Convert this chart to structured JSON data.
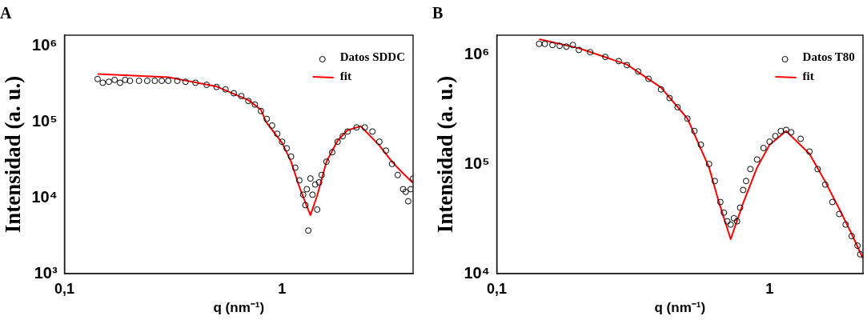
{
  "chart_data": [
    {
      "type": "scatter",
      "title": "A",
      "xlabel": "q (nm⁻¹)",
      "ylabel": "Intensidad (a. u.)",
      "log": "xy",
      "legend": "top right",
      "xlim": [
        0.1,
        4
      ],
      "ylim": [
        1000,
        1400000
      ],
      "xticks": [
        {
          "value": 0.1,
          "label": "0,1"
        },
        1
      ],
      "yticks": [
        {
          "value": 1000,
          "label": "10³"
        },
        {
          "value": 10000,
          "label": "10⁴"
        },
        {
          "value": 100000,
          "label": "10⁵"
        },
        {
          "value": 1000000,
          "label": "10⁶"
        }
      ],
      "series": [
        {
          "name": "Datos SDDC",
          "color": "#000000",
          "marker": "circle",
          "x": [
            0.142,
            0.15,
            0.16,
            0.17,
            0.18,
            0.19,
            0.2,
            0.22,
            0.24,
            0.26,
            0.28,
            0.3,
            0.33,
            0.36,
            0.4,
            0.45,
            0.5,
            0.55,
            0.6,
            0.65,
            0.7,
            0.75,
            0.8,
            0.85,
            0.9,
            0.95,
            1.0,
            1.05,
            1.1,
            1.15,
            1.2,
            1.25,
            1.28,
            1.3,
            1.32,
            1.35,
            1.38,
            1.42,
            1.45,
            1.48,
            1.52,
            1.6,
            1.7,
            1.8,
            1.9,
            2.0,
            2.2,
            2.4,
            2.6,
            2.8,
            3.0,
            3.2,
            3.4,
            3.6,
            3.7,
            3.8,
            3.9,
            4.0
          ],
          "values": [
            370000,
            330000,
            340000,
            360000,
            330000,
            360000,
            350000,
            350000,
            350000,
            350000,
            350000,
            350000,
            350000,
            340000,
            330000,
            310000,
            290000,
            270000,
            240000,
            220000,
            190000,
            170000,
            140000,
            110000,
            90000,
            70000,
            55000,
            45000,
            35000,
            25000,
            17000,
            11000,
            8000,
            13000,
            3700,
            18000,
            11000,
            15000,
            7000,
            16000,
            20000,
            30000,
            40000,
            55000,
            65000,
            75000,
            85000,
            85000,
            75000,
            55000,
            42000,
            28000,
            20000,
            13000,
            12000,
            9000,
            13000,
            18000
          ]
        },
        {
          "name": "fit",
          "type": "line",
          "color": "#ff0000",
          "marker": "none",
          "x": [
            0.142,
            0.3,
            0.5,
            0.7,
            0.8,
            0.845,
            1.0,
            1.1,
            1.2,
            1.3,
            1.35,
            1.45,
            1.6,
            1.8,
            2.0,
            2.3,
            2.8,
            3.2,
            3.6,
            4.0
          ],
          "values": [
            430000,
            390000,
            295000,
            195000,
            145000,
            100000,
            53000,
            30000,
            14000,
            7700,
            5900,
            10700,
            30000,
            57000,
            78000,
            88000,
            49000,
            30000,
            21000,
            15700
          ]
        }
      ]
    },
    {
      "type": "scatter",
      "title": "B",
      "xlabel": "q (nm⁻¹)",
      "ylabel": "Intensidad (a. u.)",
      "log": "xy",
      "legend": "top right",
      "xlim": [
        0.1,
        2.2
      ],
      "ylim": [
        10000,
        1500000
      ],
      "xticks": [
        {
          "value": 0.1,
          "label": "0,1"
        },
        1
      ],
      "yticks": [
        {
          "value": 10000,
          "label": "10⁴"
        },
        {
          "value": 100000,
          "label": "10⁵"
        },
        {
          "value": 1000000,
          "label": "10⁶"
        }
      ],
      "series": [
        {
          "name": "Datos T80",
          "color": "#000000",
          "marker": "circle",
          "x": [
            0.143,
            0.15,
            0.16,
            0.17,
            0.18,
            0.19,
            0.2,
            0.22,
            0.25,
            0.28,
            0.3,
            0.33,
            0.36,
            0.4,
            0.43,
            0.46,
            0.5,
            0.53,
            0.56,
            0.6,
            0.63,
            0.66,
            0.68,
            0.7,
            0.72,
            0.74,
            0.76,
            0.78,
            0.8,
            0.82,
            0.85,
            0.9,
            0.95,
            1.0,
            1.05,
            1.1,
            1.15,
            1.2,
            1.3,
            1.4,
            1.5,
            1.6,
            1.7,
            1.8,
            1.9,
            2.0,
            2.1,
            2.15
          ],
          "values": [
            1250000,
            1250000,
            1220000,
            1200000,
            1180000,
            1220000,
            1100000,
            1050000,
            950000,
            870000,
            800000,
            700000,
            600000,
            480000,
            400000,
            330000,
            260000,
            200000,
            150000,
            100000,
            70000,
            45000,
            36000,
            30000,
            28000,
            32000,
            30000,
            40000,
            58000,
            70000,
            90000,
            110000,
            140000,
            160000,
            180000,
            200000,
            205000,
            195000,
            170000,
            130000,
            90000,
            65000,
            45000,
            35000,
            28000,
            22000,
            18000,
            15000
          ]
        },
        {
          "name": "fit",
          "type": "line",
          "color": "#ff0000",
          "marker": "none",
          "x": [
            0.143,
            0.2,
            0.3,
            0.4,
            0.5,
            0.6,
            0.65,
            0.72,
            0.8,
            0.9,
            1.0,
            1.15,
            1.4,
            1.6,
            1.8,
            2.0,
            2.2
          ],
          "values": [
            1380000,
            1140000,
            810000,
            500000,
            260000,
            93000,
            46000,
            20600,
            44000,
            93000,
            150000,
            200000,
            124000,
            69000,
            39000,
            23000,
            13700
          ]
        }
      ]
    }
  ]
}
